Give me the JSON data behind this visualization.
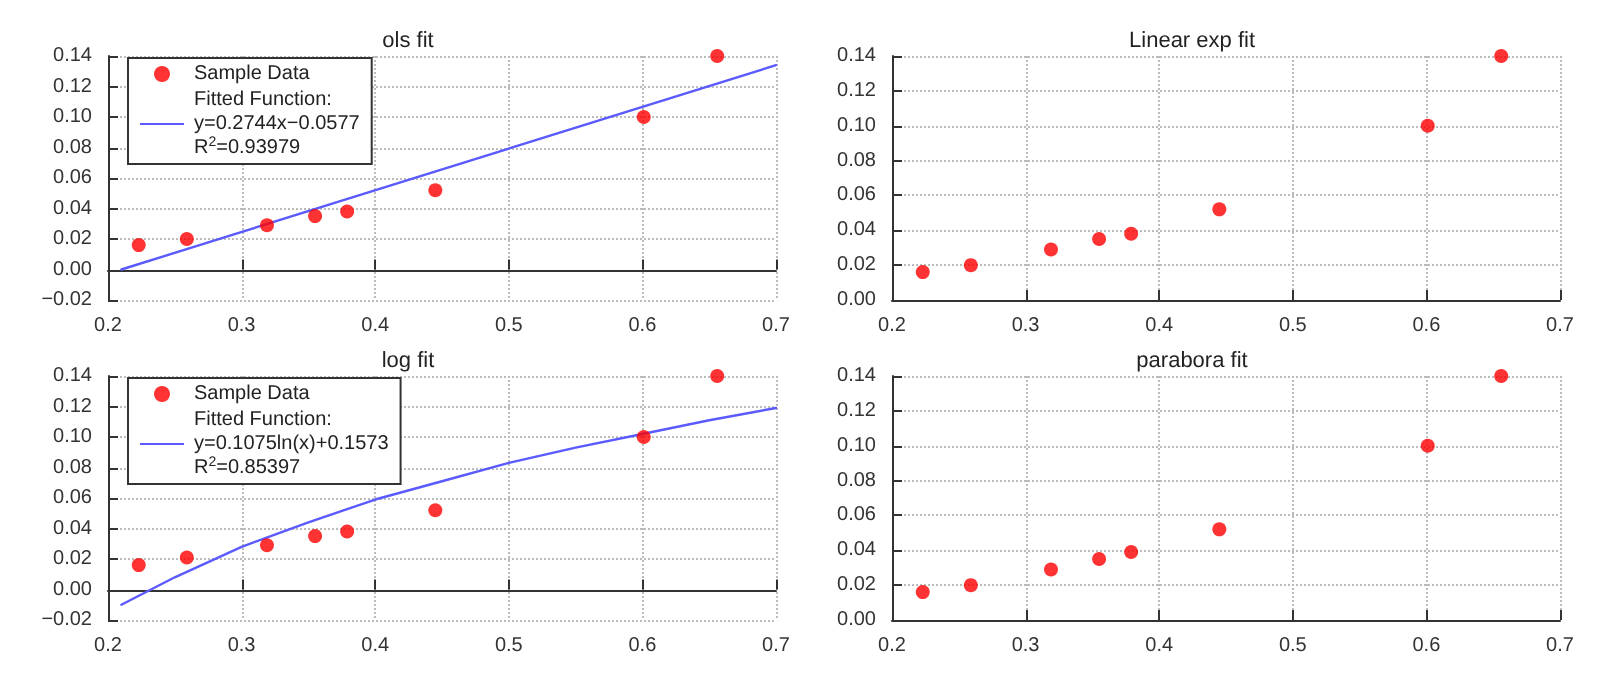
{
  "chart_data": [
    {
      "type": "scatter",
      "title": "ols fit",
      "grid": true,
      "legend": "top left",
      "line_style": "solid",
      "xlim": [
        0.2,
        0.7
      ],
      "xticks": [
        0.2,
        0.3,
        0.4,
        0.5,
        0.6,
        0.7
      ],
      "ylim": [
        -0.02,
        0.14
      ],
      "yticks": [
        {
          "value": -0.02,
          "label": "−0.02"
        },
        {
          "value": 0,
          "label": "0.00"
        },
        {
          "value": 0.02,
          "label": "0.02"
        },
        {
          "value": 0.04,
          "label": "0.04"
        },
        {
          "value": 0.06,
          "label": "0.06"
        },
        {
          "value": 0.08,
          "label": "0.08"
        },
        {
          "value": 0.1,
          "label": "0.10"
        },
        {
          "value": 0.12,
          "label": "0.12"
        },
        {
          "value": 0.14,
          "label": "0.14"
        }
      ],
      "x": [
        0.223,
        0.259,
        0.319,
        0.355,
        0.379,
        0.445,
        0.601,
        0.656
      ],
      "series": [
        {
          "name": "Sample Data",
          "marker": "circle",
          "color": "#ff0000",
          "values": [
            0.016,
            0.02,
            0.029,
            0.035,
            0.038,
            0.052,
            0.1,
            0.14
          ]
        },
        {
          "type": "line",
          "marker": "none",
          "name": "Fitted Function:\ny=0.2744x−0.0577\nR$^{2}$=0.93979",
          "color": "#5a5aff",
          "x": [
            0.21,
            0.7
          ],
          "values": [
            0.0,
            0.134
          ]
        }
      ]
    },
    {
      "type": "scatter",
      "title": "Linear exp fit",
      "marker": "circle",
      "grid": true,
      "xlim": [
        0.2,
        0.7
      ],
      "xticks": [
        0.2,
        0.3,
        0.4,
        0.5,
        0.6,
        0.7
      ],
      "ylim": [
        0,
        0.14
      ],
      "yticks": [
        {
          "value": 0,
          "label": "0.00"
        },
        {
          "value": 0.02,
          "label": "0.02"
        },
        {
          "value": 0.04,
          "label": "0.04"
        },
        {
          "value": 0.06,
          "label": "0.06"
        },
        {
          "value": 0.08,
          "label": "0.08"
        },
        {
          "value": 0.1,
          "label": "0.10"
        },
        {
          "value": 0.12,
          "label": "0.12"
        },
        {
          "value": 0.14,
          "label": "0.14"
        }
      ],
      "x": [
        0.223,
        0.259,
        0.319,
        0.355,
        0.379,
        0.445,
        0.601,
        0.656
      ],
      "series": [
        {
          "color": "#ff0000",
          "values": [
            0.016,
            0.02,
            0.029,
            0.035,
            0.038,
            0.052,
            0.1,
            0.14
          ]
        }
      ]
    },
    {
      "type": "scatter",
      "title": "log fit",
      "grid": true,
      "legend": "top left",
      "line_style": "solid",
      "xlim": [
        0.2,
        0.7
      ],
      "xticks": [
        0.2,
        0.3,
        0.4,
        0.5,
        0.6,
        0.7
      ],
      "ylim": [
        -0.02,
        0.14
      ],
      "yticks": [
        {
          "value": -0.02,
          "label": "−0.02"
        },
        {
          "value": 0,
          "label": "0.00"
        },
        {
          "value": 0.02,
          "label": "0.02"
        },
        {
          "value": 0.04,
          "label": "0.04"
        },
        {
          "value": 0.06,
          "label": "0.06"
        },
        {
          "value": 0.08,
          "label": "0.08"
        },
        {
          "value": 0.1,
          "label": "0.10"
        },
        {
          "value": 0.12,
          "label": "0.12"
        },
        {
          "value": 0.14,
          "label": "0.14"
        }
      ],
      "x": [
        0.223,
        0.259,
        0.319,
        0.355,
        0.379,
        0.445,
        0.601,
        0.656
      ],
      "series": [
        {
          "name": "Sample Data",
          "marker": "circle",
          "color": "#ff0000",
          "values": [
            0.016,
            0.021,
            0.029,
            0.035,
            0.038,
            0.052,
            0.1,
            0.14
          ]
        },
        {
          "type": "line",
          "marker": "none",
          "name": "Fitted Function:\ny=0.1075ln(x)+0.1573\nR$^{2}$=0.85397",
          "color": "#5a5aff",
          "x": [
            0.21,
            0.25,
            0.3,
            0.35,
            0.4,
            0.45,
            0.5,
            0.55,
            0.6,
            0.65,
            0.7
          ],
          "values": [
            -0.01,
            0.008,
            0.028,
            0.044,
            0.059,
            0.071,
            0.083,
            0.093,
            0.102,
            0.111,
            0.119
          ]
        }
      ]
    },
    {
      "type": "scatter",
      "title": "parabora fit",
      "marker": "circle",
      "grid": true,
      "xlim": [
        0.2,
        0.7
      ],
      "xticks": [
        0.2,
        0.3,
        0.4,
        0.5,
        0.6,
        0.7
      ],
      "ylim": [
        0,
        0.14
      ],
      "yticks": [
        {
          "value": 0,
          "label": "0.00"
        },
        {
          "value": 0.02,
          "label": "0.02"
        },
        {
          "value": 0.04,
          "label": "0.04"
        },
        {
          "value": 0.06,
          "label": "0.06"
        },
        {
          "value": 0.08,
          "label": "0.08"
        },
        {
          "value": 0.1,
          "label": "0.10"
        },
        {
          "value": 0.12,
          "label": "0.12"
        },
        {
          "value": 0.14,
          "label": "0.14"
        }
      ],
      "x": [
        0.223,
        0.259,
        0.319,
        0.355,
        0.379,
        0.445,
        0.601,
        0.656
      ],
      "series": [
        {
          "color": "#ff0000",
          "values": [
            0.016,
            0.02,
            0.029,
            0.035,
            0.039,
            0.052,
            0.1,
            0.14
          ]
        }
      ]
    }
  ]
}
